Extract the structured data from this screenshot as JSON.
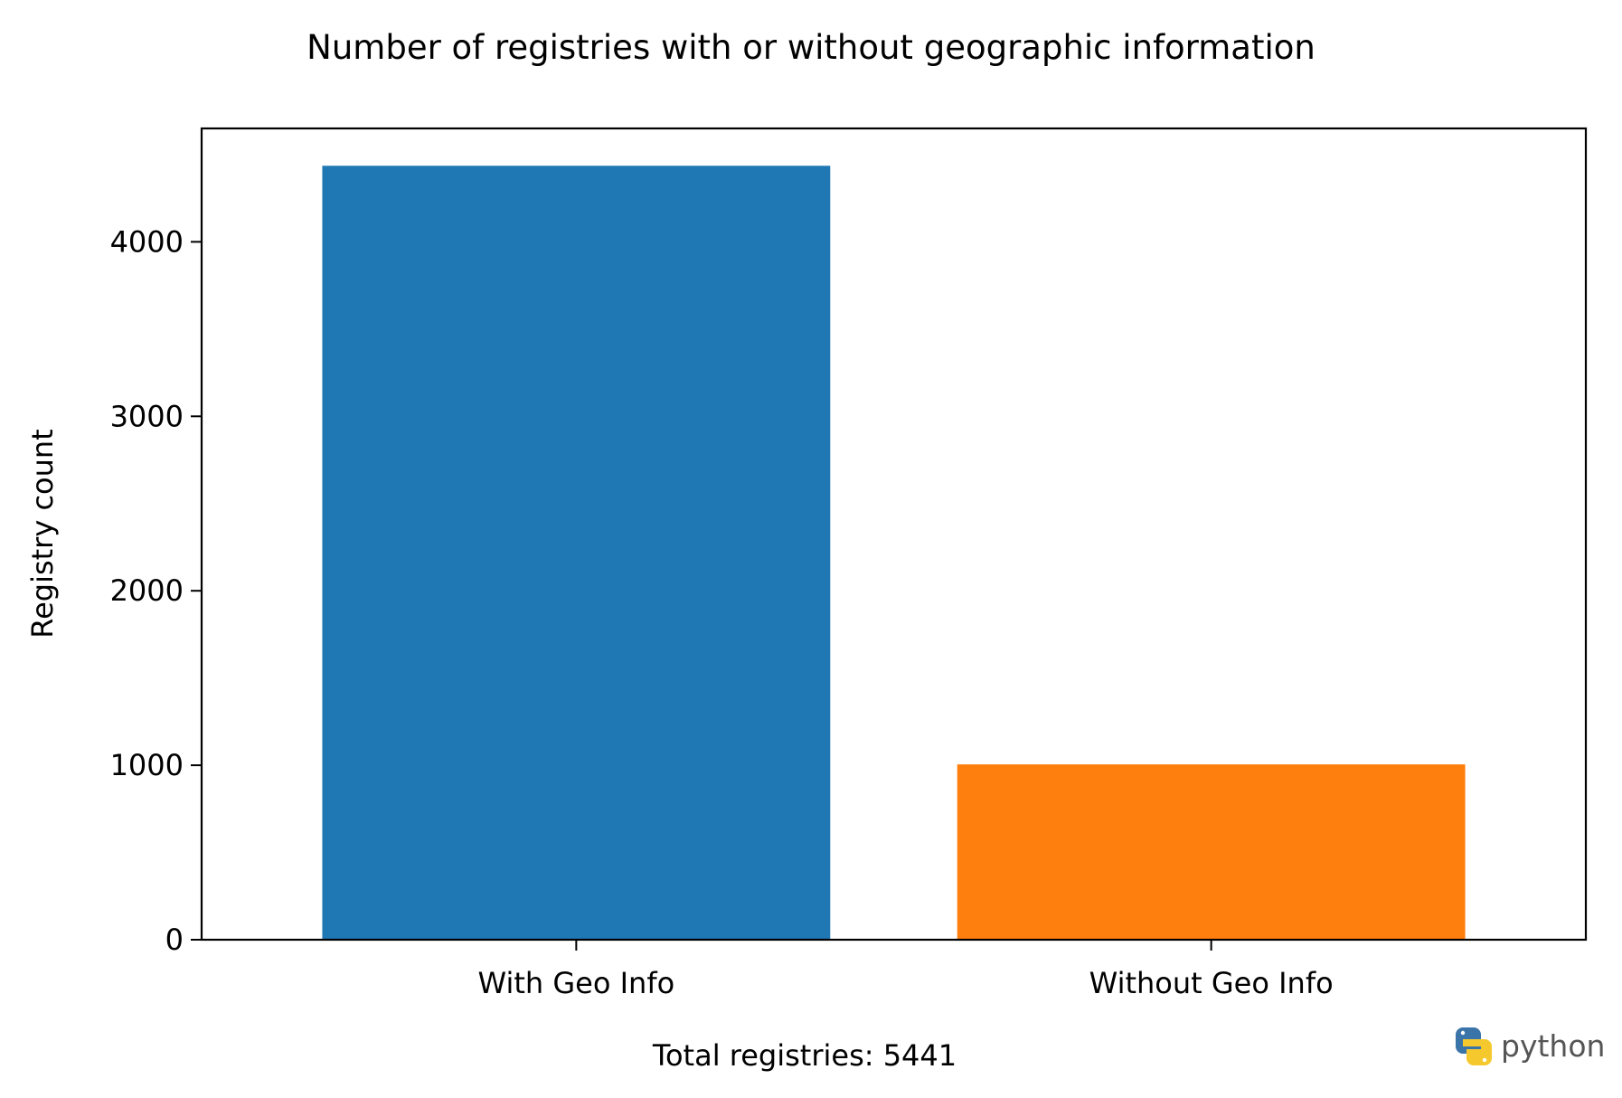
{
  "chart_data": {
    "type": "bar",
    "title": "Number of registries with or without geographic information",
    "xlabel": "Total registries: 5441",
    "ylabel": "Registry count",
    "categories": [
      "With Geo Info",
      "Without Geo Info"
    ],
    "values": [
      4436,
      1005
    ],
    "colors": [
      "#1f77b4",
      "#ff7f0e"
    ],
    "ylim": [
      0,
      4650
    ],
    "yticks": [
      0,
      1000,
      2000,
      3000,
      4000
    ],
    "grid": false,
    "legend": "none"
  },
  "logo": {
    "text": "python",
    "icon": "python-logo-icon"
  }
}
